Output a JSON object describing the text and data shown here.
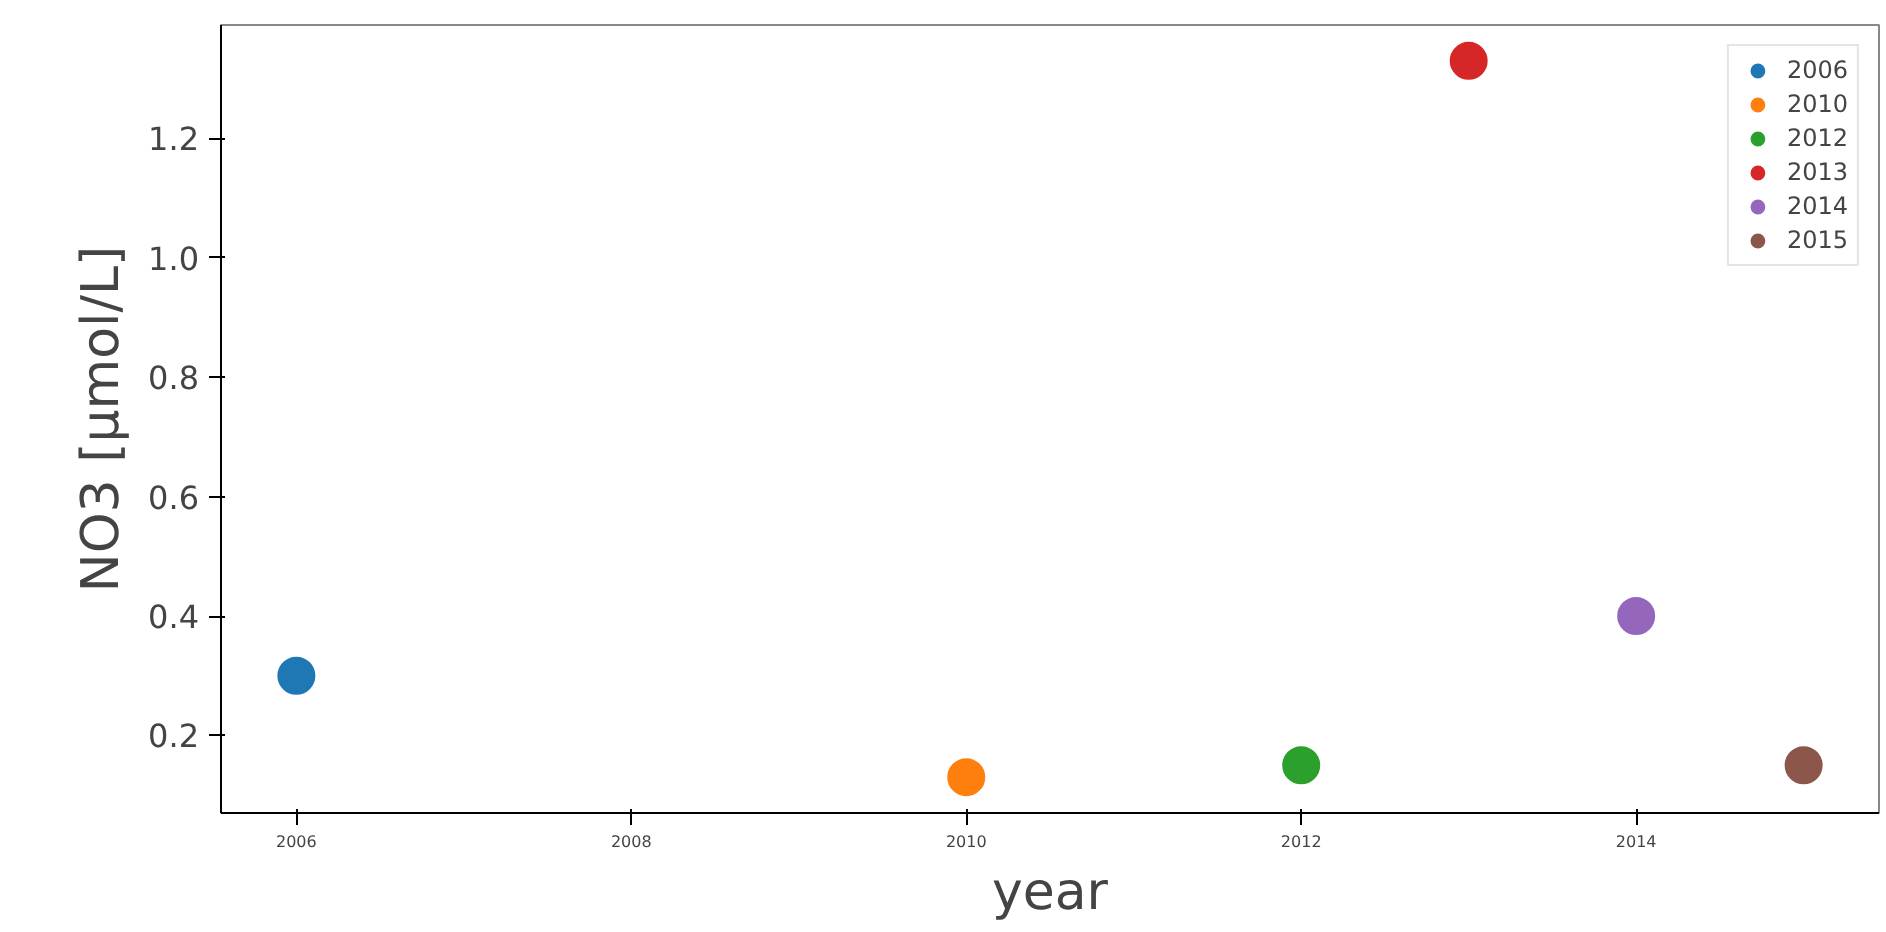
{
  "chart_data": {
    "type": "scatter",
    "xlabel": "year",
    "ylabel": "NO3 [µmol/L]",
    "marker": "circle",
    "legend": "top right",
    "grid": false,
    "xlim": [
      2005.55,
      2015.45
    ],
    "xticks": [
      2006,
      2008,
      2010,
      2012,
      2014
    ],
    "ylim": [
      0.07,
      1.39
    ],
    "yticks": [
      0.2,
      0.4,
      0.6,
      0.8,
      {
        "value": 1.0,
        "label": "1.0"
      },
      1.2
    ],
    "series": [
      {
        "name": "2006",
        "color": "#1f77b4",
        "x": [
          2006
        ],
        "values": [
          0.3
        ]
      },
      {
        "name": "2010",
        "color": "#ff7f0e",
        "x": [
          2010
        ],
        "values": [
          0.13
        ]
      },
      {
        "name": "2012",
        "color": "#2ca02c",
        "x": [
          2012
        ],
        "values": [
          0.15
        ]
      },
      {
        "name": "2013",
        "color": "#d62728",
        "x": [
          2013
        ],
        "values": [
          1.33
        ]
      },
      {
        "name": "2014",
        "color": "#9467bd",
        "x": [
          2014
        ],
        "values": [
          0.4
        ]
      },
      {
        "name": "2015",
        "color": "#8c564b",
        "x": [
          2015
        ],
        "values": [
          0.15
        ]
      }
    ]
  }
}
